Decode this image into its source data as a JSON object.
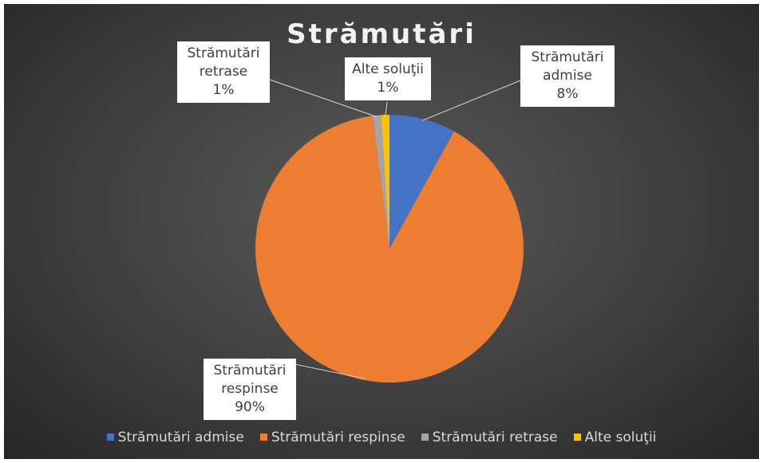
{
  "chart_data": {
    "type": "pie",
    "title": "Strămutări",
    "categories": [
      "Strămutări admise",
      "Strămutări respinse",
      "Strămutări retrase",
      "Alte soluţii"
    ],
    "values": [
      8,
      90,
      1,
      1
    ],
    "value_labels": [
      "8%",
      "90%",
      "1%",
      "1%"
    ],
    "colors": [
      "#4472c4",
      "#ed7d31",
      "#a5a5a5",
      "#ffc000"
    ],
    "legend": "bottom"
  }
}
